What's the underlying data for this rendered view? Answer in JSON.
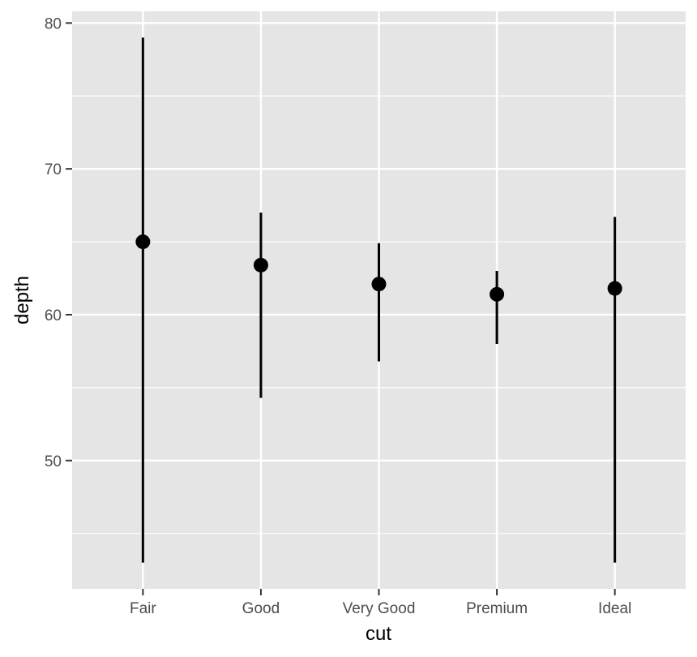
{
  "chart_data": {
    "type": "pointrange",
    "xlabel": "cut",
    "ylabel": "depth",
    "categories": [
      "Fair",
      "Good",
      "Very Good",
      "Premium",
      "Ideal"
    ],
    "points": [
      {
        "category": "Fair",
        "y": 65.0,
        "ymin": 43.0,
        "ymax": 79.0
      },
      {
        "category": "Good",
        "y": 63.4,
        "ymin": 54.3,
        "ymax": 67.0
      },
      {
        "category": "Very Good",
        "y": 62.1,
        "ymin": 56.8,
        "ymax": 64.9
      },
      {
        "category": "Premium",
        "y": 61.4,
        "ymin": 58.0,
        "ymax": 63.0
      },
      {
        "category": "Ideal",
        "y": 61.8,
        "ymin": 43.0,
        "ymax": 66.7
      }
    ],
    "yticks": [
      50,
      60,
      70,
      80
    ],
    "ylim": [
      41.2,
      80.8
    ],
    "grid": true,
    "colors": {
      "panel": "#e5e5e5",
      "grid": "#ffffff",
      "marks": "#000000",
      "ticks": "#333333",
      "tick_labels": "#4d4d4d"
    }
  }
}
